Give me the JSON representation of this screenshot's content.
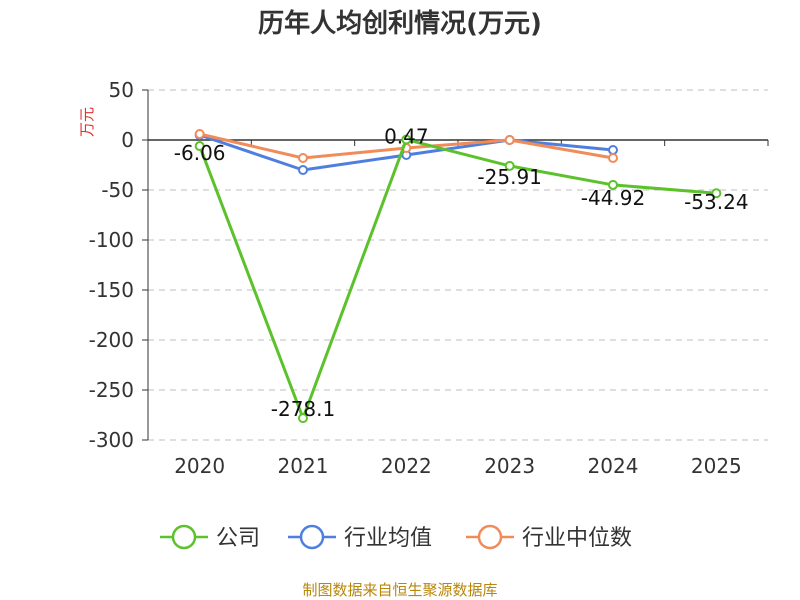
{
  "chart_data": {
    "type": "line",
    "title": "历年人均创利情况(万元)",
    "ylabel": "万元",
    "categories": [
      "2020",
      "2021",
      "2022",
      "2023",
      "2024",
      "2025"
    ],
    "ylim": [
      -300,
      50
    ],
    "yticks": [
      50,
      0,
      -50,
      -100,
      -150,
      -200,
      -250,
      -300
    ],
    "ytick_labels": [
      "50",
      "0",
      "-50",
      "-100",
      "-150",
      "-200",
      "-250",
      "-300"
    ],
    "grid": true,
    "legend_position": "bottom",
    "series": [
      {
        "name": "公司",
        "color": "#5bc22b",
        "values": [
          -6.06,
          -278.1,
          0.47,
          -25.91,
          -44.92,
          -53.24
        ],
        "labels": [
          "-6.06",
          "-278.1",
          "0.47",
          "-25.91",
          "-44.92",
          "-53.24"
        ]
      },
      {
        "name": "行业均值",
        "color": "#4f7fde",
        "values": [
          5,
          -30,
          -15,
          0,
          -10,
          null
        ]
      },
      {
        "name": "行业中位数",
        "color": "#f08c5a",
        "values": [
          6,
          -18,
          -8,
          0,
          -18,
          null
        ]
      }
    ]
  },
  "source_text": "制图数据来自恒生聚源数据库"
}
